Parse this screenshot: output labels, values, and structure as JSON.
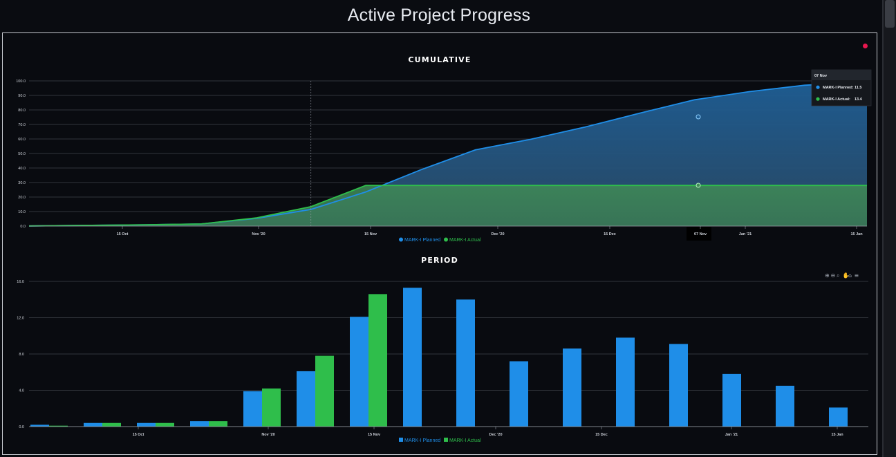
{
  "page": {
    "title": "Active Project Progress"
  },
  "colors": {
    "planned": "#1f8ee8",
    "actual": "#2fbe4b",
    "grid": "#5b5f66",
    "status_dot": "#e8174f"
  },
  "toolbar_icons": [
    "zoom-in-icon",
    "zoom-out-icon",
    "magnify-icon",
    "pan-icon",
    "home-icon",
    "menu-icon"
  ],
  "tooltip": {
    "header": "07 Nov",
    "rows": [
      {
        "label": "MARK-I Planned:",
        "value": "11.5"
      },
      {
        "label": "MARK-I Actual:",
        "value": "13.4"
      }
    ]
  },
  "chart_data": [
    {
      "type": "area",
      "title": "CUMULATIVE",
      "ylim": [
        0,
        100
      ],
      "yticks": [
        "0.0",
        "10.0",
        "20.0",
        "30.0",
        "40.0",
        "50.0",
        "60.0",
        "70.0",
        "80.0",
        "90.0",
        "100.0"
      ],
      "xticks": [
        "15 Oct",
        "Nov '20",
        "15 Nov",
        "Dec '20",
        "15 Dec",
        "07 Nov",
        "Jan '21",
        "15 Jan"
      ],
      "grid": true,
      "legend": "bottom-center",
      "series": [
        {
          "name": "MARK-I Planned",
          "x": [
            "2020-10-01",
            "2020-10-09",
            "2020-10-16",
            "2020-10-23",
            "2020-10-30",
            "2020-11-06",
            "2020-11-13",
            "2020-11-20",
            "2020-11-27",
            "2020-12-04",
            "2020-12-11",
            "2020-12-18",
            "2020-12-25",
            "2021-01-01",
            "2021-01-08",
            "2021-01-15"
          ],
          "values": [
            0.1,
            0.5,
            0.9,
            1.5,
            5.3,
            11.5,
            23.5,
            38.7,
            52.5,
            59.7,
            68.2,
            77.8,
            87.0,
            92.6,
            97.0,
            99.1
          ]
        },
        {
          "name": "MARK-I Actual",
          "x": [
            "2020-10-01",
            "2020-10-09",
            "2020-10-16",
            "2020-10-23",
            "2020-10-30",
            "2020-11-06",
            "2020-11-13",
            "2020-11-20",
            "2021-01-16"
          ],
          "values": [
            0.1,
            0.5,
            0.9,
            1.5,
            5.6,
            13.4,
            28.0,
            28.0,
            28.0
          ]
        }
      ]
    },
    {
      "type": "bar",
      "title": "PERIOD",
      "ylim": [
        0,
        16
      ],
      "yticks": [
        "0.0",
        "4.0",
        "8.0",
        "12.0",
        "16.0"
      ],
      "xticks": [
        "15 Oct",
        "Nov '20",
        "15 Nov",
        "Dec '20",
        "15 Dec",
        "Jan '21",
        "15 Jan"
      ],
      "grid": true,
      "legend": "bottom-center",
      "categories": [
        "2020-10-01",
        "2020-10-09",
        "2020-10-16",
        "2020-10-23",
        "2020-10-30",
        "2020-11-06",
        "2020-11-13",
        "2020-11-20",
        "2020-11-27",
        "2020-12-04",
        "2020-12-11",
        "2020-12-18",
        "2020-12-25",
        "2021-01-01",
        "2021-01-08",
        "2021-01-15"
      ],
      "series": [
        {
          "name": "MARK-I Planned",
          "values": [
            0.2,
            0.4,
            0.4,
            0.6,
            3.9,
            6.1,
            12.1,
            15.3,
            14.0,
            7.2,
            8.6,
            9.8,
            9.1,
            5.8,
            4.5,
            2.1
          ]
        },
        {
          "name": "MARK-I Actual",
          "values": [
            0.1,
            0.4,
            0.4,
            0.6,
            4.2,
            7.8,
            14.6,
            0,
            0,
            0,
            0,
            0,
            0,
            0,
            0,
            0
          ]
        }
      ]
    }
  ]
}
